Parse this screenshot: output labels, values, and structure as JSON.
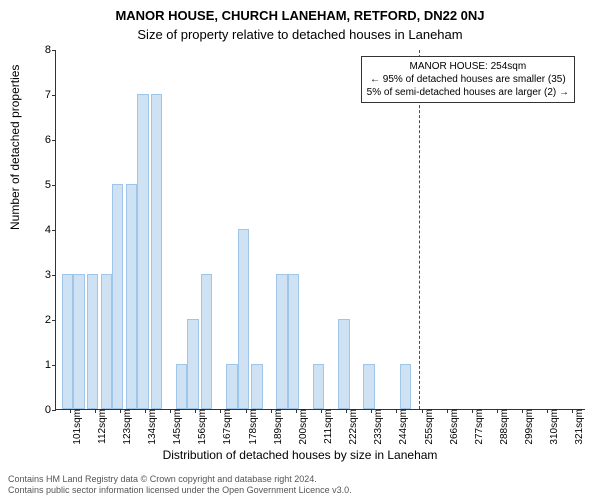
{
  "title_line1": "MANOR HOUSE, CHURCH LANEHAM, RETFORD, DN22 0NJ",
  "title_line2": "Size of property relative to detached houses in Laneham",
  "ylabel": "Number of detached properties",
  "xlabel": "Distribution of detached houses by size in Laneham",
  "chart": {
    "type": "histogram",
    "ylim": [
      0,
      8
    ],
    "ytick_step": 1,
    "xmin": 95,
    "xmax": 327,
    "xtick_start": 101,
    "xtick_step": 11,
    "xtick_suffix": "sqm",
    "bar_color": "#cfe2f3",
    "bar_border": "#9fc5e8",
    "bin_width": 5,
    "bins": [
      {
        "x": 100,
        "v": 3
      },
      {
        "x": 105,
        "v": 3
      },
      {
        "x": 111,
        "v": 3
      },
      {
        "x": 117,
        "v": 3
      },
      {
        "x": 122,
        "v": 5
      },
      {
        "x": 128,
        "v": 5
      },
      {
        "x": 133,
        "v": 7
      },
      {
        "x": 139,
        "v": 7
      },
      {
        "x": 150,
        "v": 1
      },
      {
        "x": 155,
        "v": 2
      },
      {
        "x": 161,
        "v": 3
      },
      {
        "x": 172,
        "v": 1
      },
      {
        "x": 177,
        "v": 4
      },
      {
        "x": 183,
        "v": 1
      },
      {
        "x": 194,
        "v": 3
      },
      {
        "x": 199,
        "v": 3
      },
      {
        "x": 210,
        "v": 1
      },
      {
        "x": 221,
        "v": 2
      },
      {
        "x": 232,
        "v": 1
      },
      {
        "x": 248,
        "v": 1
      }
    ],
    "marker_x": 254,
    "marker_color": "#ff0000"
  },
  "annotation": {
    "line1": "MANOR HOUSE: 254sqm",
    "line2": "← 95% of detached houses are smaller (35)",
    "line3": "5% of semi-detached houses are larger (2) →"
  },
  "footer": {
    "line1": "Contains HM Land Registry data © Crown copyright and database right 2024.",
    "line2": "Contains public sector information licensed under the Open Government Licence v3.0."
  }
}
